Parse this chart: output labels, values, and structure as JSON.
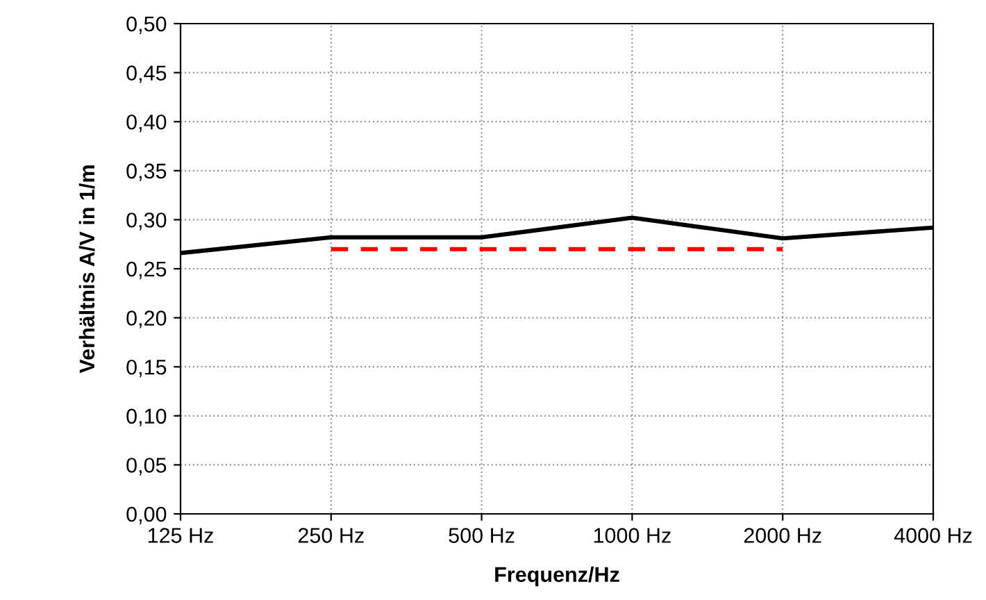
{
  "chart_data": {
    "type": "line",
    "xlabel": "Frequenz/Hz",
    "ylabel": "Verhältnis A/V in 1/m",
    "categories": [
      "125 Hz",
      "250 Hz",
      "500 Hz",
      "1000 Hz",
      "2000 Hz",
      "4000 Hz"
    ],
    "series": [
      {
        "color": "#000000",
        "values": [
          0.266,
          0.282,
          0.282,
          0.302,
          0.281,
          0.292
        ],
        "line_style": "solid"
      },
      {
        "color": "#ff0000",
        "values": [
          null,
          0.27,
          0.27,
          0.27,
          0.27,
          null
        ],
        "line_style": "dashed"
      }
    ],
    "ylim": [
      0,
      0.5
    ],
    "yticks": [
      {
        "value": 0,
        "label": "0,00"
      },
      {
        "value": 0.05,
        "label": "0,05"
      },
      {
        "value": 0.1,
        "label": "0,10"
      },
      {
        "value": 0.15,
        "label": "0,15"
      },
      {
        "value": 0.2,
        "label": "0,20"
      },
      {
        "value": 0.25,
        "label": "0,25"
      },
      {
        "value": 0.3,
        "label": "0,30"
      },
      {
        "value": 0.35,
        "label": "0,35"
      },
      {
        "value": 0.4,
        "label": "0,40"
      },
      {
        "value": 0.45,
        "label": "0,45"
      },
      {
        "value": 0.5,
        "label": "0,50"
      }
    ],
    "grid": true,
    "marker": "none"
  }
}
